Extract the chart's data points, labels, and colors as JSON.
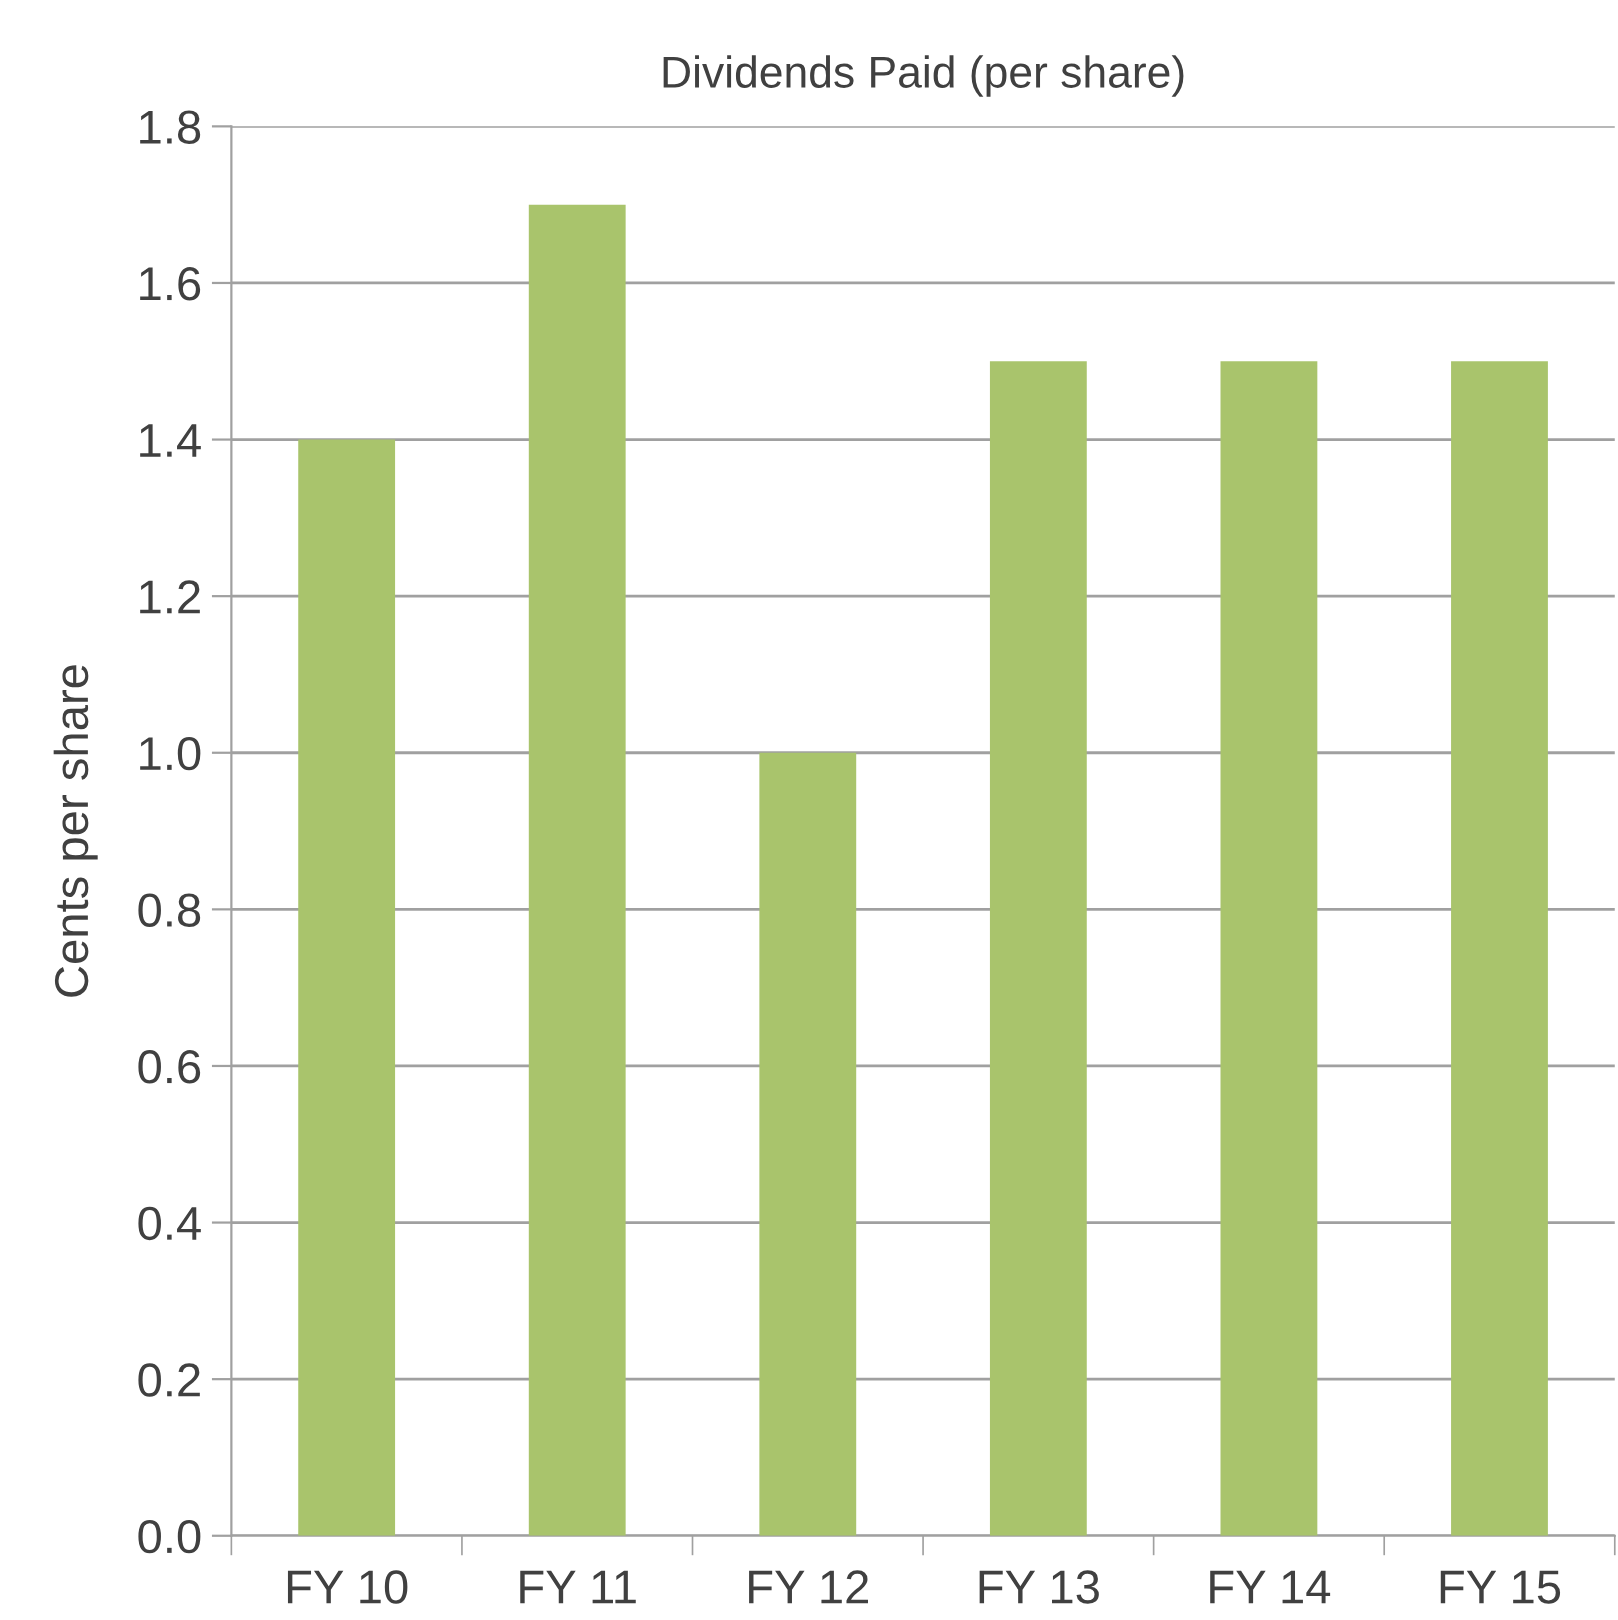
{
  "chart_data": {
    "type": "bar",
    "title": "Dividends Paid (per share)",
    "ylabel": "Cents per share",
    "categories": [
      "FY 10",
      "FY 11",
      "FY 12",
      "FY 13",
      "FY 14",
      "FY 15"
    ],
    "values": [
      1.4,
      1.7,
      1.0,
      1.5,
      1.5,
      1.5
    ],
    "color": "#a9c46c",
    "ylim": [
      0,
      1.8
    ],
    "yticks": [
      {
        "value": 0,
        "label": "0.0"
      },
      0.2,
      0.4,
      0.6,
      0.8,
      {
        "value": 1,
        "label": "1.0"
      },
      1.2,
      1.4,
      1.6,
      1.8
    ],
    "grid": "y",
    "legend": false
  }
}
